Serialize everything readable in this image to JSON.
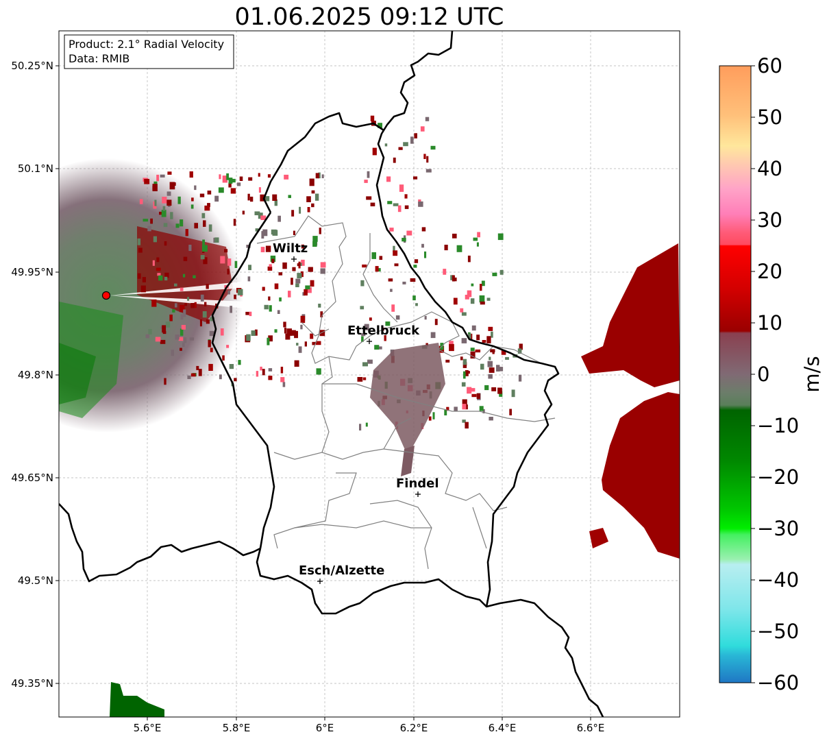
{
  "title": "01.06.2025 09:12 UTC",
  "info_box": {
    "product": "Product: 2.1° Radial Velocity",
    "source": "Data: RMIB"
  },
  "axes": {
    "lon_ticks": [
      "5.6°E",
      "5.8°E",
      "6°E",
      "6.2°E",
      "6.4°E",
      "6.6°E"
    ],
    "lat_ticks": [
      "50.25°N",
      "50.1°N",
      "49.95°N",
      "49.8°N",
      "49.65°N",
      "49.5°N",
      "49.35°N"
    ],
    "grid": true
  },
  "cities": [
    {
      "name": "Wiltz"
    },
    {
      "name": "Ettelbruck"
    },
    {
      "name": "Findel"
    },
    {
      "name": "Esch/Alzette"
    }
  ],
  "radar_site": {
    "marker_color": "#ff0000"
  },
  "colorbar": {
    "label": "m/s",
    "ticks": [
      "60",
      "50",
      "40",
      "30",
      "20",
      "10",
      "0",
      "−10",
      "−20",
      "−30",
      "−40",
      "−50",
      "−60"
    ],
    "min": -60,
    "max": 60
  },
  "colors": {
    "inbound_dark": "#8b0000",
    "neutral": "#7a6870",
    "outbound_green": "#2a8a2a",
    "border": "#000000",
    "canton_lines": "#808080"
  }
}
